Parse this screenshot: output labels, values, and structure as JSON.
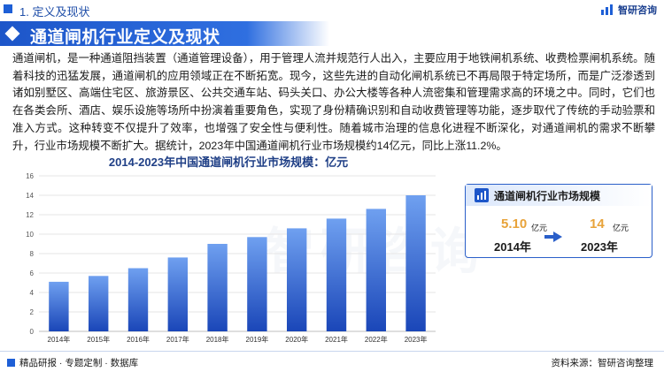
{
  "header": {
    "section_label": "1. 定义及现状",
    "logo_text": "智研咨询"
  },
  "banner": {
    "title": "通道闸机行业定义及现状"
  },
  "intro": {
    "paragraph": "通道闸机，是一种通道阻挡装置（通道管理设备），用于管理人流并规范行人出入，主要应用于地铁闸机系统、收费检票闸机系统。随着科技的迅猛发展，通道闸机的应用领域正在不断拓宽。现今，这些先进的自动化闸机系统已不再局限于特定场所，而是广泛渗透到诸如别墅区、高端住宅区、旅游景区、公共交通车站、码头关口、办公大楼等各种人流密集和管理需求高的环境之中。同时，它们也在各类会所、酒店、娱乐设施等场所中扮演着重要角色，实现了身份精确识别和自动收费管理等功能，逐步取代了传统的手动验票和准入方式。这种转变不仅提升了效率，也增强了安全性与便利性。随着城市治理的信息化进程不断深化，对通道闸机的需求不断攀升，行业市场规模不断扩大。据统计，2023年中国通道闸机行业市场规模约14亿元，同比上涨11.2%。"
  },
  "chart_data": {
    "type": "bar",
    "title": "2014-2023年中国通道闸机行业市场规模：亿元",
    "categories": [
      "2014年",
      "2015年",
      "2016年",
      "2017年",
      "2018年",
      "2019年",
      "2020年",
      "2021年",
      "2022年",
      "2023年"
    ],
    "series": [
      {
        "values": [
          5.1,
          5.7,
          6.5,
          7.6,
          9.0,
          9.7,
          10.6,
          11.6,
          12.6,
          14.0
        ]
      }
    ],
    "ylim": [
      0,
      16
    ],
    "yticks": [
      "0",
      "2",
      "4",
      "6",
      "8",
      "10",
      "12",
      "14",
      "16"
    ],
    "grid": true,
    "colors": {
      "bar_light": "#6fa0f0",
      "bar_dark": "#1a46b8"
    }
  },
  "side_card": {
    "title": "通道闸机行业市场规模",
    "start": {
      "value": "5.10",
      "unit": "亿元",
      "year": "2014年"
    },
    "end": {
      "value": "14",
      "unit": "亿元",
      "year": "2023年"
    }
  },
  "footer": {
    "left_text": "精品研报 · 专题定制 · 数据库",
    "source_text": "资料来源：智研咨询整理"
  },
  "colors": {
    "accent": "#1e5fd6",
    "value_highlight": "#e8a33a"
  }
}
